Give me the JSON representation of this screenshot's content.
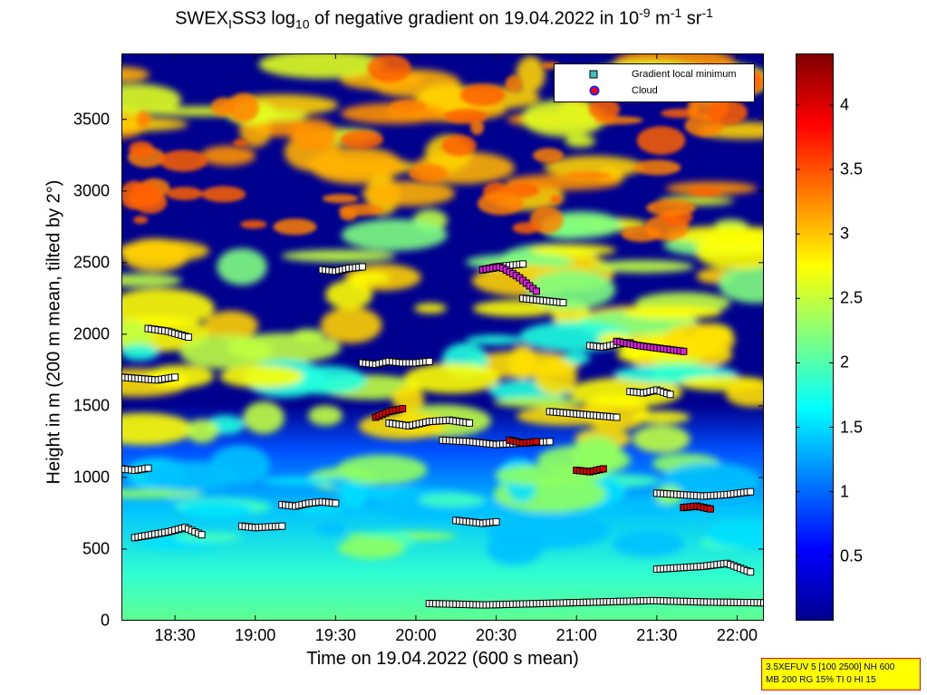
{
  "chart_data": {
    "type": "heatmap",
    "title_parts": {
      "a": "SWEX",
      "b": "I",
      "c": "SS3 log",
      "d": "10",
      "e": " of negative gradient on 19.04.2022 in 10",
      "f": "-9",
      "g": " m",
      "h": "-1",
      "i": " sr",
      "j": "-1"
    },
    "xlabel": "Time on 19.04.2022 (600 s mean)",
    "ylabel": "Height in m (200 m mean, tilted by 2°)",
    "x_ticks": [
      "18:30",
      "19:00",
      "19:30",
      "20:00",
      "20:30",
      "21:00",
      "21:30",
      "22:00"
    ],
    "y_ticks": [
      "0",
      "500",
      "1000",
      "1500",
      "2000",
      "2500",
      "3000",
      "3500"
    ],
    "xlim": [
      "18:10",
      "22:10"
    ],
    "ylim": [
      0,
      3960
    ],
    "colorbar": {
      "ticks": [
        "0.5",
        "1",
        "1.5",
        "2",
        "2.5",
        "3",
        "3.5",
        "4"
      ],
      "range": [
        0,
        4.4
      ],
      "colormap": "jet"
    },
    "legend": {
      "position": "top-right",
      "entries": [
        {
          "label": "Gradient local minimum",
          "marker": "square",
          "color": "#40c0c0"
        },
        {
          "label": "Cloud",
          "marker": "circle",
          "color": "#ff0000"
        }
      ]
    },
    "gradient_minima_layers": [
      {
        "start": "18:10",
        "end": "18:20",
        "heights": [
          1060,
          1050,
          1065
        ]
      },
      {
        "start": "18:10",
        "end": "18:30",
        "heights": [
          1700,
          1690,
          1680,
          1700
        ]
      },
      {
        "start": "18:20",
        "end": "18:35",
        "heights": [
          2040,
          2030,
          2020,
          2000,
          1980
        ]
      },
      {
        "start": "18:15",
        "end": "18:40",
        "heights": [
          580,
          600,
          620,
          650,
          600
        ]
      },
      {
        "start": "18:55",
        "end": "19:10",
        "heights": [
          660,
          650,
          655,
          660
        ]
      },
      {
        "start": "19:10",
        "end": "19:30",
        "heights": [
          810,
          800,
          820,
          830,
          820
        ]
      },
      {
        "start": "19:25",
        "end": "19:40",
        "heights": [
          2450,
          2440,
          2460,
          2470
        ]
      },
      {
        "start": "19:40",
        "end": "20:05",
        "heights": [
          1800,
          1790,
          1810,
          1800,
          1800,
          1810
        ]
      },
      {
        "start": "19:50",
        "end": "20:20",
        "heights": [
          1380,
          1360,
          1390,
          1400,
          1380
        ]
      },
      {
        "start": "20:10",
        "end": "20:50",
        "heights": [
          1260,
          1250,
          1230,
          1240,
          1250
        ]
      },
      {
        "start": "20:15",
        "end": "20:30",
        "heights": [
          700,
          690,
          680,
          690
        ]
      },
      {
        "start": "20:25",
        "end": "20:40",
        "heights": [
          2450,
          2470,
          2480,
          2490
        ]
      },
      {
        "start": "20:40",
        "end": "20:55",
        "heights": [
          2250,
          2240,
          2230,
          2220
        ]
      },
      {
        "start": "20:50",
        "end": "21:15",
        "heights": [
          1460,
          1450,
          1440,
          1430,
          1420
        ]
      },
      {
        "start": "21:05",
        "end": "21:20",
        "heights": [
          1920,
          1910,
          1930,
          1940
        ]
      },
      {
        "start": "21:20",
        "end": "21:35",
        "heights": [
          1600,
          1590,
          1610,
          1580
        ]
      },
      {
        "start": "21:30",
        "end": "22:05",
        "heights": [
          890,
          880,
          870,
          880,
          900
        ]
      },
      {
        "start": "21:30",
        "end": "22:05",
        "heights": [
          360,
          370,
          380,
          400,
          340
        ]
      },
      {
        "start": "20:05",
        "end": "22:10",
        "heights": [
          120,
          110,
          120,
          130,
          140,
          130,
          125
        ]
      }
    ],
    "cloud_layers": [
      {
        "start": "19:45",
        "end": "19:55",
        "heights": [
          1420,
          1460,
          1480
        ]
      },
      {
        "start": "20:35",
        "end": "20:45",
        "heights": [
          1260,
          1240,
          1250
        ]
      },
      {
        "start": "21:00",
        "end": "21:10",
        "heights": [
          1050,
          1040,
          1060
        ]
      },
      {
        "start": "21:40",
        "end": "21:50",
        "heights": [
          790,
          800,
          780
        ]
      }
    ],
    "upper_cloud_markers": [
      {
        "start": "20:25",
        "end": "20:45",
        "heights": [
          2450,
          2470,
          2400,
          2300
        ]
      },
      {
        "start": "21:15",
        "end": "21:40",
        "heights": [
          1950,
          1920,
          1900,
          1880
        ]
      }
    ]
  },
  "infobox": {
    "line1": "3.5XEFUV 5 [100 2500] NH 600",
    "line2": "MB 200 RG 15% TI 0 HI 15"
  }
}
